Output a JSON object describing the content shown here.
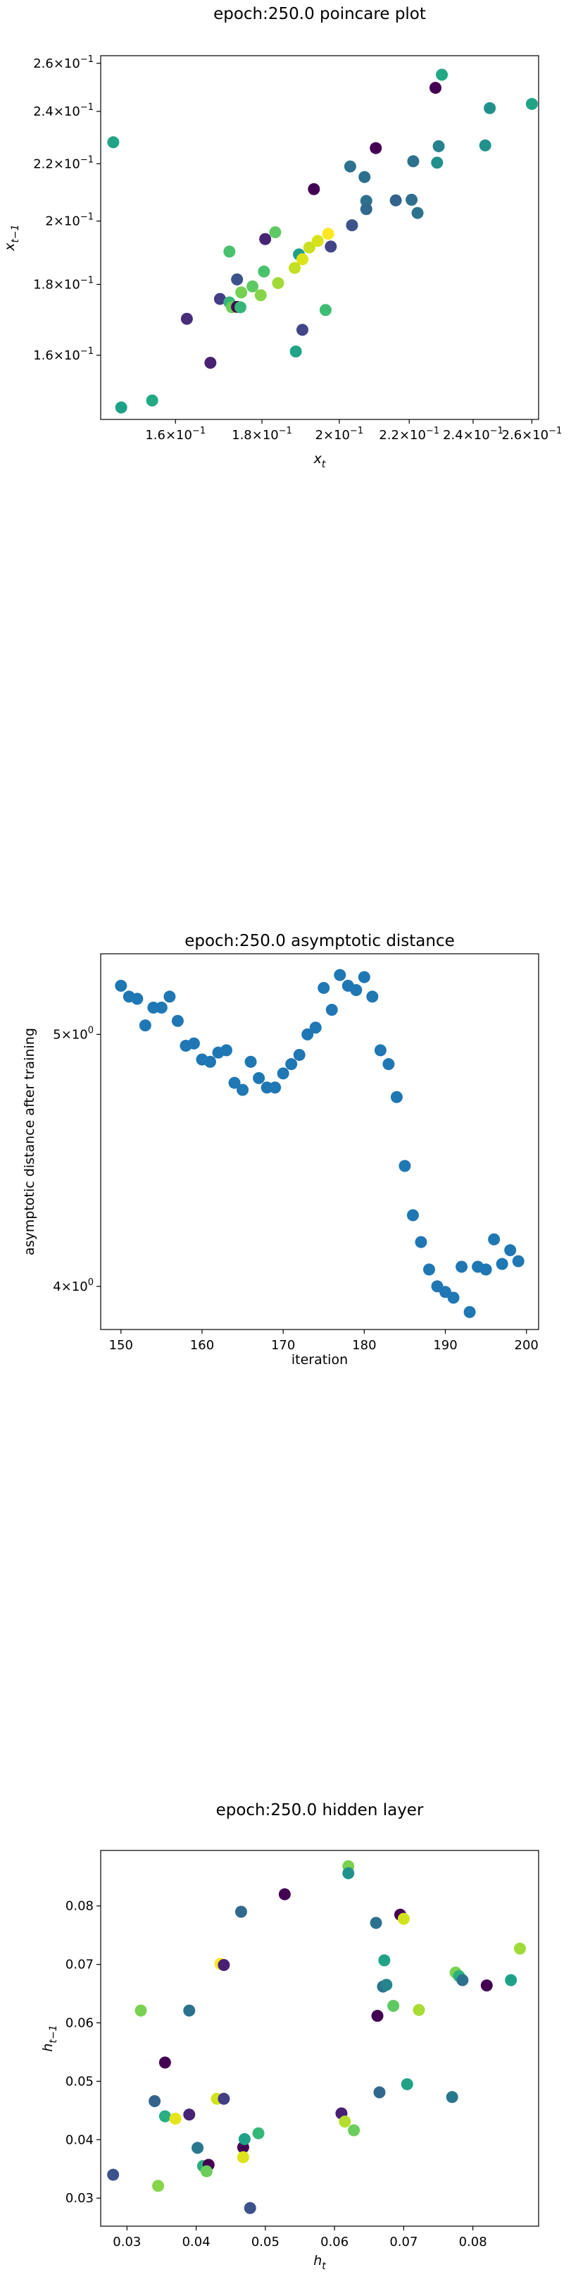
{
  "chart_data": [
    {
      "type": "scatter",
      "title": "epoch:250.0 poincare plot",
      "xlabel": "x_t",
      "ylabel": "x_{t−1}",
      "xscale": "log",
      "yscale": "log",
      "xlim": [
        0.1445,
        0.2624
      ],
      "ylim": [
        0.1438,
        0.2633
      ],
      "xticks": [
        {
          "value": 0.16,
          "label": "1.6×10⁻¹"
        },
        {
          "value": 0.18,
          "label": "1.8×10⁻¹"
        },
        {
          "value": 0.2,
          "label": "2×10⁻¹"
        },
        {
          "value": 0.22,
          "label": "2.2×10⁻¹"
        },
        {
          "value": 0.24,
          "label": "2.4×10⁻¹"
        },
        {
          "value": 0.26,
          "label": "2.6×10⁻¹"
        }
      ],
      "yticks": [
        {
          "value": 0.16,
          "label": "1.6×10⁻¹"
        },
        {
          "value": 0.18,
          "label": "1.8×10⁻¹"
        },
        {
          "value": 0.2,
          "label": "2×10⁻¹"
        },
        {
          "value": 0.22,
          "label": "2.2×10⁻¹"
        },
        {
          "value": 0.24,
          "label": "2.4×10⁻¹"
        },
        {
          "value": 0.26,
          "label": "2.6×10⁻¹"
        }
      ],
      "grid": false,
      "colormap": "viridis",
      "points": [
        {
          "x": 0.147,
          "y": 0.228,
          "c": "#21a386"
        },
        {
          "x": 0.1486,
          "y": 0.1467,
          "c": "#1fa188"
        },
        {
          "x": 0.155,
          "y": 0.1484,
          "c": "#22a884"
        },
        {
          "x": 0.1625,
          "y": 0.17,
          "c": "#472d7b"
        },
        {
          "x": 0.1678,
          "y": 0.158,
          "c": "#482173"
        },
        {
          "x": 0.17,
          "y": 0.1757,
          "c": "#433e85"
        },
        {
          "x": 0.1722,
          "y": 0.1747,
          "c": "#35b779"
        },
        {
          "x": 0.1728,
          "y": 0.1733,
          "c": "#6ccd5a"
        },
        {
          "x": 0.174,
          "y": 0.1734,
          "c": "#440154"
        },
        {
          "x": 0.1722,
          "y": 0.1901,
          "c": "#4ac16d"
        },
        {
          "x": 0.174,
          "y": 0.1815,
          "c": "#3b528b"
        },
        {
          "x": 0.1748,
          "y": 0.1733,
          "c": "#35b779"
        },
        {
          "x": 0.175,
          "y": 0.1776,
          "c": "#75d054"
        },
        {
          "x": 0.1777,
          "y": 0.1794,
          "c": "#5ec962"
        },
        {
          "x": 0.1797,
          "y": 0.1768,
          "c": "#86d549"
        },
        {
          "x": 0.1805,
          "y": 0.1839,
          "c": "#4ac16d"
        },
        {
          "x": 0.1808,
          "y": 0.1941,
          "c": "#482475"
        },
        {
          "x": 0.1833,
          "y": 0.1963,
          "c": "#5ec962"
        },
        {
          "x": 0.184,
          "y": 0.1804,
          "c": "#a0da39"
        },
        {
          "x": 0.1882,
          "y": 0.185,
          "c": "#c2df23"
        },
        {
          "x": 0.1885,
          "y": 0.161,
          "c": "#20a386"
        },
        {
          "x": 0.1893,
          "y": 0.1892,
          "c": "#1f9e89"
        },
        {
          "x": 0.1902,
          "y": 0.1669,
          "c": "#404688"
        },
        {
          "x": 0.1902,
          "y": 0.1877,
          "c": "#dde318"
        },
        {
          "x": 0.192,
          "y": 0.1914,
          "c": "#c8e020"
        },
        {
          "x": 0.1932,
          "y": 0.2109,
          "c": "#440154"
        },
        {
          "x": 0.1942,
          "y": 0.1935,
          "c": "#d8e219"
        },
        {
          "x": 0.1963,
          "y": 0.1725,
          "c": "#3dbc74"
        },
        {
          "x": 0.197,
          "y": 0.1958,
          "c": "#fde725"
        },
        {
          "x": 0.1977,
          "y": 0.1917,
          "c": "#414487"
        },
        {
          "x": 0.203,
          "y": 0.219,
          "c": "#2c728e"
        },
        {
          "x": 0.2035,
          "y": 0.1986,
          "c": "#3b528b"
        },
        {
          "x": 0.207,
          "y": 0.2152,
          "c": "#2d708e"
        },
        {
          "x": 0.2075,
          "y": 0.2068,
          "c": "#2c718e"
        },
        {
          "x": 0.2075,
          "y": 0.204,
          "c": "#31688e"
        },
        {
          "x": 0.2102,
          "y": 0.2258,
          "c": "#440154"
        },
        {
          "x": 0.216,
          "y": 0.207,
          "c": "#33638d"
        },
        {
          "x": 0.2207,
          "y": 0.2072,
          "c": "#2e6f8e"
        },
        {
          "x": 0.2212,
          "y": 0.2209,
          "c": "#2c728e"
        },
        {
          "x": 0.2225,
          "y": 0.2027,
          "c": "#2c728e"
        },
        {
          "x": 0.228,
          "y": 0.2496,
          "c": "#440154"
        },
        {
          "x": 0.2285,
          "y": 0.2204,
          "c": "#21918c"
        },
        {
          "x": 0.229,
          "y": 0.2265,
          "c": "#26828e"
        },
        {
          "x": 0.23,
          "y": 0.2551,
          "c": "#22a884"
        },
        {
          "x": 0.244,
          "y": 0.2268,
          "c": "#21918c"
        },
        {
          "x": 0.2455,
          "y": 0.2413,
          "c": "#21918c"
        },
        {
          "x": 0.26,
          "y": 0.243,
          "c": "#21a386"
        }
      ]
    },
    {
      "type": "scatter",
      "title": "epoch:250.0 asymptotic distance",
      "xlabel": "iteration",
      "ylabel": "asymptotic distance after training",
      "yscale": "log",
      "xlim": [
        147.5,
        201.5
      ],
      "ylim": [
        3.85,
        5.37
      ],
      "xticks": [
        {
          "value": 150,
          "label": "150"
        },
        {
          "value": 160,
          "label": "160"
        },
        {
          "value": 170,
          "label": "170"
        },
        {
          "value": 180,
          "label": "180"
        },
        {
          "value": 190,
          "label": "190"
        },
        {
          "value": 200,
          "label": "200"
        }
      ],
      "yticks": [
        {
          "value": 4,
          "label": "4×10⁰"
        },
        {
          "value": 5,
          "label": "5×10⁰"
        }
      ],
      "grid": false,
      "color": "#1f77b4",
      "x": [
        150,
        151,
        152,
        153,
        154,
        155,
        156,
        157,
        158,
        159,
        160,
        161,
        162,
        163,
        164,
        165,
        166,
        167,
        168,
        169,
        170,
        171,
        172,
        173,
        174,
        175,
        176,
        177,
        178,
        179,
        180,
        181,
        182,
        183,
        184,
        185,
        186,
        187,
        188,
        189,
        190,
        191,
        192,
        193,
        194,
        195,
        196,
        197,
        198,
        199
      ],
      "y": [
        5.22,
        5.17,
        5.16,
        5.04,
        5.12,
        5.12,
        5.17,
        5.06,
        4.95,
        4.96,
        4.89,
        4.88,
        4.92,
        4.93,
        4.79,
        4.76,
        4.88,
        4.81,
        4.77,
        4.77,
        4.83,
        4.87,
        4.91,
        5.0,
        5.03,
        5.21,
        5.11,
        5.27,
        5.22,
        5.2,
        5.26,
        5.17,
        4.93,
        4.87,
        4.73,
        4.45,
        4.26,
        4.16,
        4.06,
        4.0,
        3.98,
        3.96,
        4.07,
        3.91,
        4.07,
        4.06,
        4.17,
        4.08,
        4.13,
        4.09
      ]
    },
    {
      "type": "scatter",
      "title": "epoch:250.0 hidden layer",
      "xlabel": "h_t",
      "ylabel": "h_{t−1}",
      "xlim": [
        0.0262,
        0.0895
      ],
      "ylim": [
        0.0252,
        0.0895
      ],
      "xticks": [
        {
          "value": 0.03,
          "label": "0.03"
        },
        {
          "value": 0.04,
          "label": "0.04"
        },
        {
          "value": 0.05,
          "label": "0.05"
        },
        {
          "value": 0.06,
          "label": "0.06"
        },
        {
          "value": 0.07,
          "label": "0.07"
        },
        {
          "value": 0.08,
          "label": "0.08"
        }
      ],
      "yticks": [
        {
          "value": 0.03,
          "label": "0.03"
        },
        {
          "value": 0.04,
          "label": "0.04"
        },
        {
          "value": 0.05,
          "label": "0.05"
        },
        {
          "value": 0.06,
          "label": "0.06"
        },
        {
          "value": 0.07,
          "label": "0.07"
        },
        {
          "value": 0.08,
          "label": "0.08"
        }
      ],
      "grid": false,
      "colormap": "viridis",
      "points": [
        {
          "x": 0.028,
          "y": 0.034,
          "c": "#3b528b"
        },
        {
          "x": 0.032,
          "y": 0.0621,
          "c": "#7ad151"
        },
        {
          "x": 0.034,
          "y": 0.0466,
          "c": "#33638d"
        },
        {
          "x": 0.0345,
          "y": 0.0321,
          "c": "#86d549"
        },
        {
          "x": 0.0355,
          "y": 0.0532,
          "c": "#440154"
        },
        {
          "x": 0.0355,
          "y": 0.044,
          "c": "#28ae80"
        },
        {
          "x": 0.037,
          "y": 0.0436,
          "c": "#e7e419"
        },
        {
          "x": 0.039,
          "y": 0.0621,
          "c": "#2c728e"
        },
        {
          "x": 0.039,
          "y": 0.0443,
          "c": "#482475"
        },
        {
          "x": 0.0402,
          "y": 0.0386,
          "c": "#2a788e"
        },
        {
          "x": 0.041,
          "y": 0.0355,
          "c": "#2ab07f"
        },
        {
          "x": 0.0418,
          "y": 0.0357,
          "c": "#440154"
        },
        {
          "x": 0.0415,
          "y": 0.0346,
          "c": "#6ccd5a"
        },
        {
          "x": 0.043,
          "y": 0.047,
          "c": "#d2e21b"
        },
        {
          "x": 0.0435,
          "y": 0.0701,
          "c": "#fde725"
        },
        {
          "x": 0.044,
          "y": 0.0699,
          "c": "#482173"
        },
        {
          "x": 0.044,
          "y": 0.047,
          "c": "#433e85"
        },
        {
          "x": 0.0465,
          "y": 0.079,
          "c": "#31688e"
        },
        {
          "x": 0.0468,
          "y": 0.0387,
          "c": "#440154"
        },
        {
          "x": 0.0468,
          "y": 0.037,
          "c": "#dde318"
        },
        {
          "x": 0.047,
          "y": 0.0401,
          "c": "#1fa088"
        },
        {
          "x": 0.0478,
          "y": 0.0283,
          "c": "#3b528b"
        },
        {
          "x": 0.049,
          "y": 0.0411,
          "c": "#35b779"
        },
        {
          "x": 0.0528,
          "y": 0.082,
          "c": "#440154"
        },
        {
          "x": 0.061,
          "y": 0.0445,
          "c": "#482173"
        },
        {
          "x": 0.0615,
          "y": 0.0431,
          "c": "#b5de2b"
        },
        {
          "x": 0.062,
          "y": 0.0868,
          "c": "#7ad151"
        },
        {
          "x": 0.062,
          "y": 0.0856,
          "c": "#21918c"
        },
        {
          "x": 0.0628,
          "y": 0.0416,
          "c": "#6ccd5a"
        },
        {
          "x": 0.066,
          "y": 0.0771,
          "c": "#2c728e"
        },
        {
          "x": 0.0662,
          "y": 0.0612,
          "c": "#440154"
        },
        {
          "x": 0.0665,
          "y": 0.0481,
          "c": "#31688e"
        },
        {
          "x": 0.067,
          "y": 0.0662,
          "c": "#2c728e"
        },
        {
          "x": 0.0672,
          "y": 0.0707,
          "c": "#21a386"
        },
        {
          "x": 0.0675,
          "y": 0.0665,
          "c": "#25858e"
        },
        {
          "x": 0.0685,
          "y": 0.0629,
          "c": "#5ec962"
        },
        {
          "x": 0.0695,
          "y": 0.0785,
          "c": "#440154"
        },
        {
          "x": 0.07,
          "y": 0.0778,
          "c": "#d2e21b"
        },
        {
          "x": 0.0705,
          "y": 0.0495,
          "c": "#21a386"
        },
        {
          "x": 0.0722,
          "y": 0.0622,
          "c": "#a8db34"
        },
        {
          "x": 0.077,
          "y": 0.0473,
          "c": "#2a788e"
        },
        {
          "x": 0.0775,
          "y": 0.0686,
          "c": "#7ad151"
        },
        {
          "x": 0.078,
          "y": 0.068,
          "c": "#2ab07f"
        },
        {
          "x": 0.0785,
          "y": 0.0673,
          "c": "#2d708e"
        },
        {
          "x": 0.082,
          "y": 0.0664,
          "c": "#440154"
        },
        {
          "x": 0.0855,
          "y": 0.0673,
          "c": "#1fa188"
        },
        {
          "x": 0.0868,
          "y": 0.0727,
          "c": "#a0da39"
        }
      ]
    }
  ]
}
